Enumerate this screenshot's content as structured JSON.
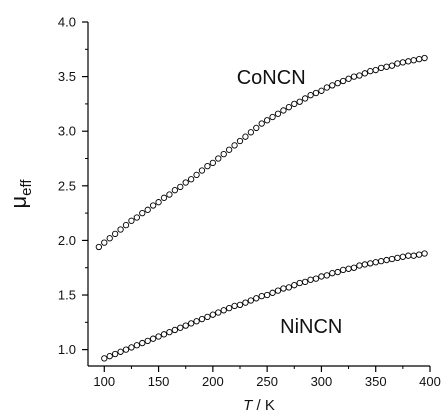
{
  "chart_data": {
    "type": "scatter",
    "xlabel": "T / K",
    "ylabel": "μeff",
    "ylabel_parts": {
      "main": "μ",
      "subscript": "eff"
    },
    "xlim": [
      85,
      400
    ],
    "ylim": [
      0.85,
      4.0
    ],
    "xticks": [
      100,
      150,
      200,
      250,
      300,
      350,
      400
    ],
    "yticks": [
      1.0,
      1.5,
      2.0,
      2.5,
      3.0,
      3.5,
      4.0
    ],
    "xtick_labels": [
      "100",
      "150",
      "200",
      "250",
      "300",
      "350",
      "400"
    ],
    "ytick_labels": [
      "1.0",
      "1.5",
      "2.0",
      "2.5",
      "3.0",
      "3.5",
      "4.0"
    ],
    "grid": false,
    "marker": "open-circle",
    "color": "#000000",
    "series": [
      {
        "name": "CoNCN",
        "x": [
          95,
          100,
          105,
          110,
          115,
          120,
          125,
          130,
          135,
          140,
          145,
          150,
          155,
          160,
          165,
          170,
          175,
          180,
          185,
          190,
          195,
          200,
          205,
          210,
          215,
          220,
          225,
          230,
          235,
          240,
          245,
          250,
          255,
          260,
          265,
          270,
          275,
          280,
          285,
          290,
          295,
          300,
          305,
          310,
          315,
          320,
          325,
          330,
          335,
          340,
          345,
          350,
          355,
          360,
          365,
          370,
          375,
          380,
          385,
          390,
          395
        ],
        "y": [
          1.94,
          1.98,
          2.02,
          2.06,
          2.1,
          2.14,
          2.18,
          2.21,
          2.25,
          2.28,
          2.32,
          2.35,
          2.39,
          2.42,
          2.46,
          2.49,
          2.53,
          2.56,
          2.6,
          2.64,
          2.68,
          2.71,
          2.75,
          2.79,
          2.83,
          2.87,
          2.91,
          2.95,
          2.99,
          3.03,
          3.07,
          3.1,
          3.13,
          3.16,
          3.19,
          3.22,
          3.25,
          3.27,
          3.3,
          3.33,
          3.35,
          3.37,
          3.4,
          3.42,
          3.44,
          3.46,
          3.48,
          3.5,
          3.51,
          3.53,
          3.55,
          3.56,
          3.58,
          3.59,
          3.6,
          3.62,
          3.63,
          3.64,
          3.65,
          3.66,
          3.67
        ]
      },
      {
        "name": "NiNCN",
        "x": [
          100,
          105,
          110,
          115,
          120,
          125,
          130,
          135,
          140,
          145,
          150,
          155,
          160,
          165,
          170,
          175,
          180,
          185,
          190,
          195,
          200,
          205,
          210,
          215,
          220,
          225,
          230,
          235,
          240,
          245,
          250,
          255,
          260,
          265,
          270,
          275,
          280,
          285,
          290,
          295,
          300,
          305,
          310,
          315,
          320,
          325,
          330,
          335,
          340,
          345,
          350,
          355,
          360,
          365,
          370,
          375,
          380,
          385,
          390,
          395
        ],
        "y": [
          0.92,
          0.94,
          0.96,
          0.98,
          1.0,
          1.02,
          1.04,
          1.06,
          1.08,
          1.1,
          1.12,
          1.14,
          1.16,
          1.18,
          1.2,
          1.22,
          1.24,
          1.26,
          1.28,
          1.3,
          1.32,
          1.34,
          1.36,
          1.38,
          1.4,
          1.41,
          1.43,
          1.45,
          1.47,
          1.49,
          1.5,
          1.52,
          1.54,
          1.56,
          1.57,
          1.59,
          1.61,
          1.62,
          1.64,
          1.65,
          1.67,
          1.68,
          1.7,
          1.71,
          1.73,
          1.74,
          1.75,
          1.77,
          1.78,
          1.79,
          1.8,
          1.81,
          1.82,
          1.83,
          1.84,
          1.85,
          1.86,
          1.86,
          1.87,
          1.88
        ]
      }
    ]
  }
}
